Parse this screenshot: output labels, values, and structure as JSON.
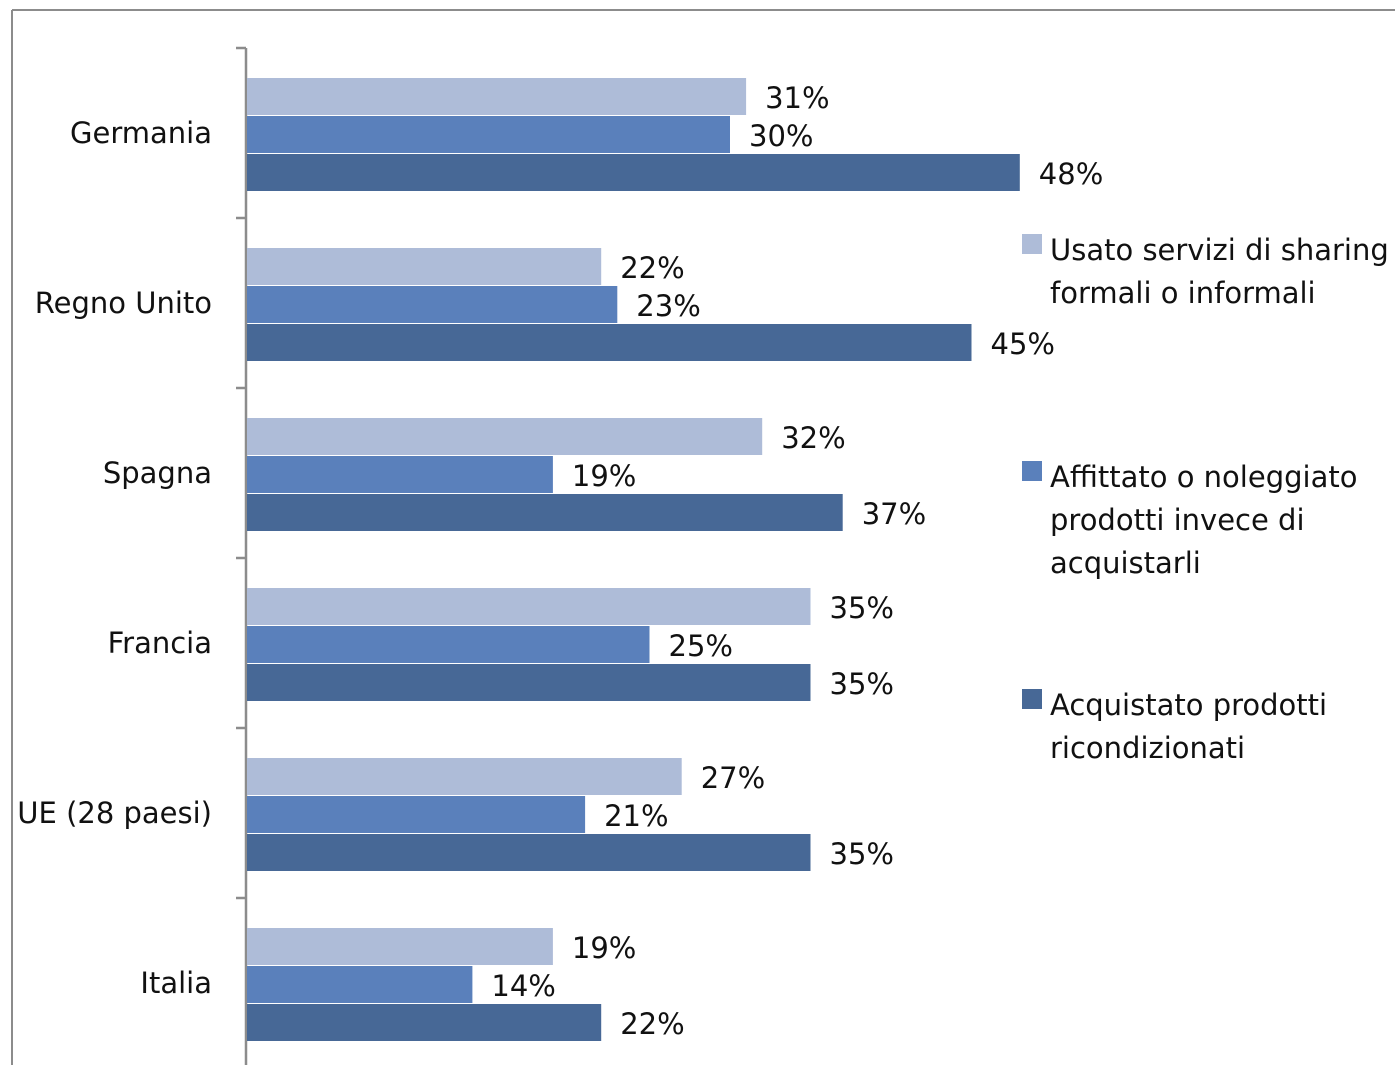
{
  "chart_data": {
    "type": "bar",
    "orientation": "horizontal",
    "title": "",
    "xlabel": "",
    "ylabel": "",
    "xlim": [
      0,
      50
    ],
    "grid": false,
    "legend_position": "right",
    "categories": [
      "Germania",
      "Regno Unito",
      "Spagna",
      "Francia",
      "UE (28 paesi)",
      "Italia"
    ],
    "series": [
      {
        "name_lines": [
          "Usato servizi di sharing",
          "formali o informali"
        ],
        "color": "#aebcd8",
        "values": [
          31,
          22,
          32,
          35,
          27,
          19
        ],
        "labels": [
          "31%",
          "22%",
          "32%",
          "35%",
          "27%",
          "19%"
        ]
      },
      {
        "name_lines": [
          "Affittato o noleggiato",
          "prodotti invece di",
          "acquistarli"
        ],
        "color": "#5a80bb",
        "values": [
          30,
          23,
          19,
          25,
          21,
          14
        ],
        "labels": [
          "30%",
          "23%",
          "19%",
          "25%",
          "21%",
          "14%"
        ]
      },
      {
        "name_lines": [
          "Acquistato prodotti",
          "ricondizionati"
        ],
        "color": "#476896",
        "values": [
          48,
          45,
          37,
          35,
          35,
          22
        ],
        "labels": [
          "48%",
          "45%",
          "37%",
          "35%",
          "35%",
          "22%"
        ]
      }
    ]
  }
}
